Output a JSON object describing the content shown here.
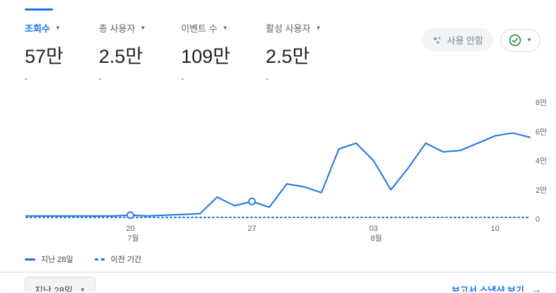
{
  "colors": {
    "accent": "#1a73e8",
    "text": "#202124",
    "muted": "#5f6368",
    "border": "#dadce0",
    "green": "#188038",
    "disabled_text": "#80868b",
    "pill_bg": "#f1f3f4"
  },
  "icons": {
    "caret": "▼",
    "arrow_right": "→"
  },
  "metrics": [
    {
      "label": "조회수",
      "value": "57만",
      "sub": "-",
      "selected": true
    },
    {
      "label": "총 사용자",
      "value": "2.5만",
      "sub": "-",
      "selected": false
    },
    {
      "label": "이벤트 수",
      "value": "109만",
      "sub": "-",
      "selected": false
    },
    {
      "label": "활성 사용자",
      "value": "2.5만",
      "sub": "-",
      "selected": false
    }
  ],
  "controls": {
    "insights_label": "사용 안함"
  },
  "chart_data": {
    "type": "line",
    "title": "",
    "xlabel": "",
    "ylabel": "",
    "ylim": [
      0,
      80000
    ],
    "grid": false,
    "legend_position": "bottom-left",
    "x": [
      "7/14",
      "7/15",
      "7/16",
      "7/17",
      "7/18",
      "7/19",
      "7/20",
      "7/21",
      "7/22",
      "7/23",
      "7/24",
      "7/25",
      "7/26",
      "7/27",
      "7/28",
      "7/29",
      "7/30",
      "7/31",
      "8/1",
      "8/2",
      "8/3",
      "8/4",
      "8/5",
      "8/6",
      "8/7",
      "8/8",
      "8/9",
      "8/10",
      "8/11",
      "8/12"
    ],
    "series": [
      {
        "name": "지난 28일",
        "style": "solid",
        "color": "#1a73e8",
        "values": [
          2000,
          2000,
          2000,
          2000,
          2000,
          2000,
          2500,
          2000,
          2500,
          3000,
          3500,
          15000,
          9000,
          12000,
          8000,
          24000,
          22000,
          18000,
          48000,
          52000,
          40000,
          20000,
          35000,
          52000,
          46000,
          47000,
          52000,
          57000,
          59000,
          56000
        ]
      },
      {
        "name": "이전 기간",
        "style": "dashed",
        "color": "#1a73e8",
        "values": [
          1000,
          1000,
          1000,
          1000,
          1000,
          1000,
          1000,
          1000,
          1000,
          1000,
          1000,
          1000,
          1000,
          1000,
          1000,
          1000,
          1000,
          1000,
          1000,
          1000,
          1000,
          1000,
          1000,
          1000,
          1000,
          1000,
          1000,
          1000,
          1000,
          1000
        ]
      }
    ],
    "markers": [
      6,
      13
    ],
    "y_ticks": [
      {
        "label": "8만",
        "value": 80000
      },
      {
        "label": "6만",
        "value": 60000
      },
      {
        "label": "4만",
        "value": 40000
      },
      {
        "label": "2만",
        "value": 20000
      },
      {
        "label": "0",
        "value": 0
      }
    ],
    "x_tick_labels": [
      {
        "index": 6,
        "label": "20",
        "sub": "7월"
      },
      {
        "index": 13,
        "label": "27",
        "sub": ""
      },
      {
        "index": 20,
        "label": "03",
        "sub": "8월"
      },
      {
        "index": 27,
        "label": "10",
        "sub": ""
      }
    ]
  },
  "legend": [
    {
      "label": "지난 28일",
      "style": "solid"
    },
    {
      "label": "이전 기간",
      "style": "dashed"
    }
  ],
  "footer": {
    "date_range_button": "지난 28일",
    "snapshot_link": "보고서 스냅샷 보기"
  }
}
